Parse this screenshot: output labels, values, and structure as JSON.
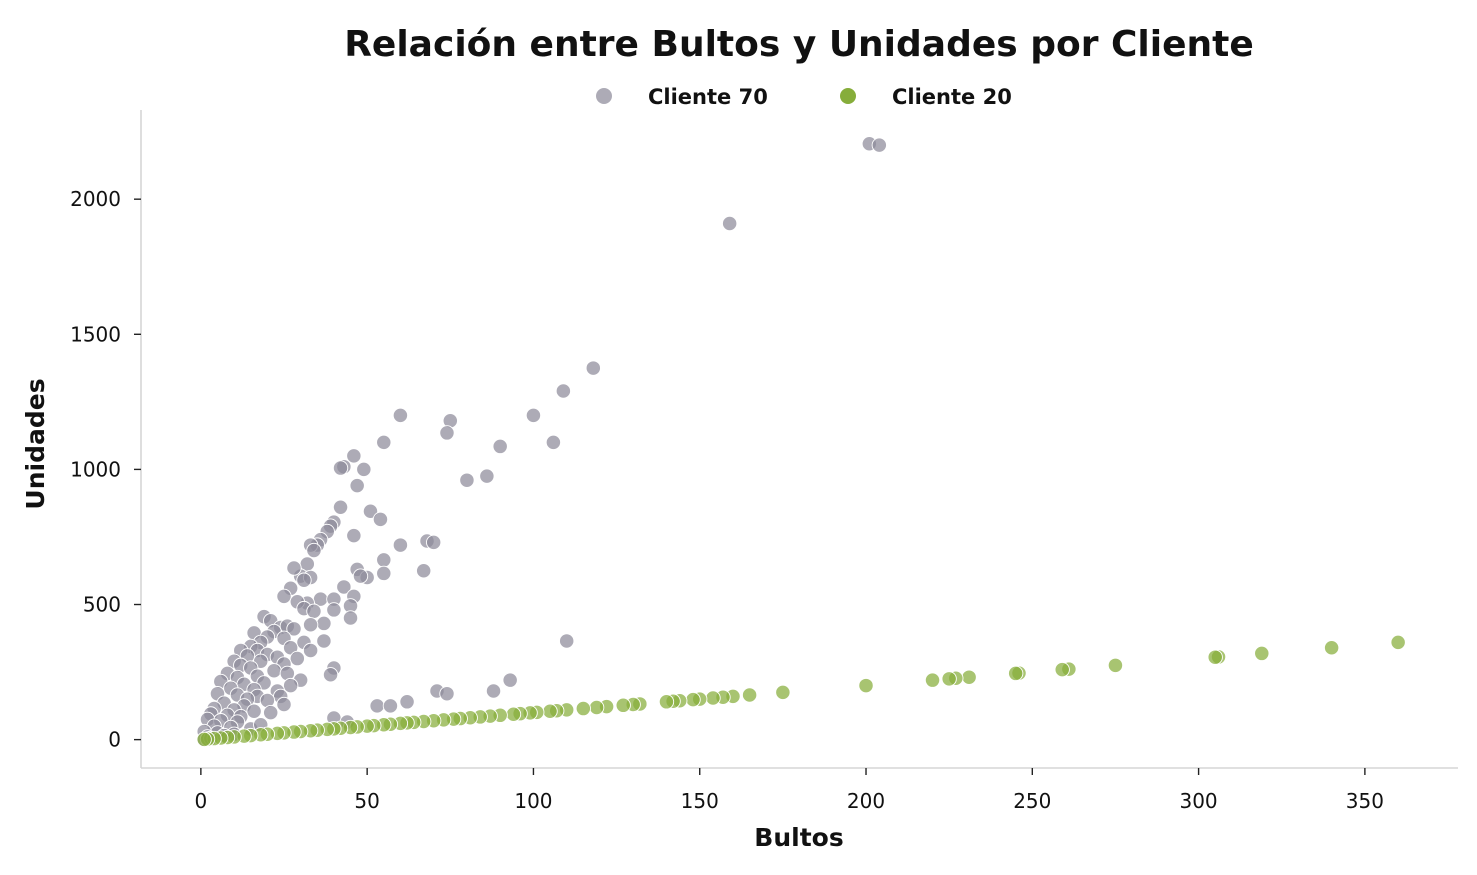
{
  "chart_data": {
    "type": "scatter",
    "title": "Relación entre Bultos y Unidades por Cliente",
    "xlabel": "Bultos",
    "ylabel": "Unidades",
    "xlim": [
      -18,
      378
    ],
    "ylim": [
      -105,
      2330
    ],
    "xticks": [
      0,
      50,
      100,
      150,
      200,
      250,
      300,
      350
    ],
    "yticks": [
      0,
      500,
      1000,
      1500,
      2000
    ],
    "grid": false,
    "legend": {
      "position": "top-center",
      "orientation": "horizontal"
    },
    "series": [
      {
        "name": "Cliente 70",
        "color": "#8e8a9a",
        "points": [
          [
            201,
            2205
          ],
          [
            204,
            2200
          ],
          [
            159,
            1910
          ],
          [
            118,
            1375
          ],
          [
            109,
            1290
          ],
          [
            100,
            1200
          ],
          [
            60,
            1200
          ],
          [
            75,
            1180
          ],
          [
            74,
            1135
          ],
          [
            55,
            1100
          ],
          [
            106,
            1100
          ],
          [
            90,
            1085
          ],
          [
            46,
            1050
          ],
          [
            43,
            1010
          ],
          [
            42,
            1005
          ],
          [
            49,
            1000
          ],
          [
            86,
            975
          ],
          [
            80,
            960
          ],
          [
            47,
            940
          ],
          [
            42,
            860
          ],
          [
            51,
            845
          ],
          [
            54,
            815
          ],
          [
            40,
            805
          ],
          [
            39,
            790
          ],
          [
            38,
            770
          ],
          [
            36,
            740
          ],
          [
            35,
            720
          ],
          [
            33,
            720
          ],
          [
            60,
            720
          ],
          [
            68,
            735
          ],
          [
            70,
            730
          ],
          [
            46,
            755
          ],
          [
            34,
            700
          ],
          [
            32,
            650
          ],
          [
            55,
            665
          ],
          [
            67,
            625
          ],
          [
            47,
            630
          ],
          [
            30,
            605
          ],
          [
            33,
            600
          ],
          [
            50,
            600
          ],
          [
            48,
            605
          ],
          [
            55,
            615
          ],
          [
            28,
            635
          ],
          [
            31,
            590
          ],
          [
            27,
            560
          ],
          [
            43,
            565
          ],
          [
            25,
            530
          ],
          [
            46,
            530
          ],
          [
            36,
            520
          ],
          [
            40,
            520
          ],
          [
            45,
            495
          ],
          [
            32,
            505
          ],
          [
            29,
            510
          ],
          [
            40,
            480
          ],
          [
            31,
            485
          ],
          [
            34,
            475
          ],
          [
            45,
            450
          ],
          [
            19,
            455
          ],
          [
            21,
            440
          ],
          [
            37,
            430
          ],
          [
            33,
            425
          ],
          [
            24,
            415
          ],
          [
            26,
            420
          ],
          [
            28,
            410
          ],
          [
            22,
            400
          ],
          [
            16,
            395
          ],
          [
            20,
            380
          ],
          [
            18,
            360
          ],
          [
            31,
            360
          ],
          [
            37,
            365
          ],
          [
            110,
            365
          ],
          [
            25,
            375
          ],
          [
            15,
            345
          ],
          [
            12,
            330
          ],
          [
            17,
            330
          ],
          [
            27,
            340
          ],
          [
            33,
            330
          ],
          [
            14,
            310
          ],
          [
            20,
            315
          ],
          [
            23,
            305
          ],
          [
            29,
            300
          ],
          [
            10,
            290
          ],
          [
            18,
            290
          ],
          [
            25,
            280
          ],
          [
            40,
            265
          ],
          [
            12,
            275
          ],
          [
            15,
            265
          ],
          [
            22,
            255
          ],
          [
            8,
            245
          ],
          [
            26,
            245
          ],
          [
            39,
            240
          ],
          [
            11,
            230
          ],
          [
            17,
            235
          ],
          [
            30,
            220
          ],
          [
            93,
            220
          ],
          [
            6,
            215
          ],
          [
            13,
            205
          ],
          [
            19,
            210
          ],
          [
            27,
            200
          ],
          [
            9,
            190
          ],
          [
            16,
            185
          ],
          [
            23,
            180
          ],
          [
            71,
            180
          ],
          [
            74,
            170
          ],
          [
            88,
            180
          ],
          [
            5,
            170
          ],
          [
            11,
            165
          ],
          [
            17,
            160
          ],
          [
            24,
            160
          ],
          [
            14,
            150
          ],
          [
            20,
            145
          ],
          [
            7,
            135
          ],
          [
            13,
            125
          ],
          [
            53,
            125
          ],
          [
            57,
            125
          ],
          [
            62,
            140
          ],
          [
            25,
            130
          ],
          [
            4,
            115
          ],
          [
            10,
            110
          ],
          [
            16,
            105
          ],
          [
            21,
            100
          ],
          [
            3,
            95
          ],
          [
            8,
            90
          ],
          [
            12,
            85
          ],
          [
            40,
            80
          ],
          [
            2,
            75
          ],
          [
            6,
            70
          ],
          [
            11,
            65
          ],
          [
            44,
            65
          ],
          [
            4,
            50
          ],
          [
            9,
            45
          ],
          [
            15,
            40
          ],
          [
            1,
            30
          ],
          [
            5,
            25
          ],
          [
            10,
            20
          ],
          [
            2,
            10
          ],
          [
            1,
            0
          ],
          [
            3,
            5
          ],
          [
            7,
            15
          ],
          [
            18,
            55
          ]
        ]
      },
      {
        "name": "Cliente 20",
        "color": "#86ad3a",
        "points": [
          [
            360,
            360
          ],
          [
            340,
            340
          ],
          [
            319,
            319
          ],
          [
            306,
            306
          ],
          [
            305,
            305
          ],
          [
            275,
            275
          ],
          [
            261,
            261
          ],
          [
            259,
            259
          ],
          [
            246,
            246
          ],
          [
            245,
            245
          ],
          [
            231,
            231
          ],
          [
            227,
            227
          ],
          [
            225,
            225
          ],
          [
            220,
            220
          ],
          [
            200,
            200
          ],
          [
            175,
            175
          ],
          [
            165,
            165
          ],
          [
            160,
            160
          ],
          [
            157,
            157
          ],
          [
            154,
            154
          ],
          [
            150,
            150
          ],
          [
            148,
            148
          ],
          [
            144,
            144
          ],
          [
            142,
            142
          ],
          [
            140,
            140
          ],
          [
            132,
            132
          ],
          [
            130,
            130
          ],
          [
            127,
            127
          ],
          [
            122,
            122
          ],
          [
            119,
            119
          ],
          [
            115,
            115
          ],
          [
            110,
            110
          ],
          [
            107,
            107
          ],
          [
            105,
            105
          ],
          [
            101,
            101
          ],
          [
            99,
            99
          ],
          [
            96,
            96
          ],
          [
            94,
            94
          ],
          [
            90,
            90
          ],
          [
            87,
            87
          ],
          [
            84,
            84
          ],
          [
            81,
            81
          ],
          [
            78,
            78
          ],
          [
            76,
            76
          ],
          [
            73,
            73
          ],
          [
            70,
            70
          ],
          [
            67,
            67
          ],
          [
            64,
            64
          ],
          [
            62,
            62
          ],
          [
            60,
            60
          ],
          [
            57,
            57
          ],
          [
            55,
            55
          ],
          [
            52,
            52
          ],
          [
            50,
            50
          ],
          [
            47,
            47
          ],
          [
            45,
            45
          ],
          [
            42,
            42
          ],
          [
            40,
            40
          ],
          [
            38,
            38
          ],
          [
            35,
            35
          ],
          [
            33,
            33
          ],
          [
            30,
            30
          ],
          [
            28,
            28
          ],
          [
            25,
            25
          ],
          [
            23,
            23
          ],
          [
            20,
            20
          ],
          [
            18,
            18
          ],
          [
            15,
            15
          ],
          [
            13,
            13
          ],
          [
            10,
            10
          ],
          [
            8,
            8
          ],
          [
            6,
            6
          ],
          [
            4,
            4
          ],
          [
            2,
            2
          ],
          [
            1,
            1
          ]
        ]
      }
    ]
  }
}
